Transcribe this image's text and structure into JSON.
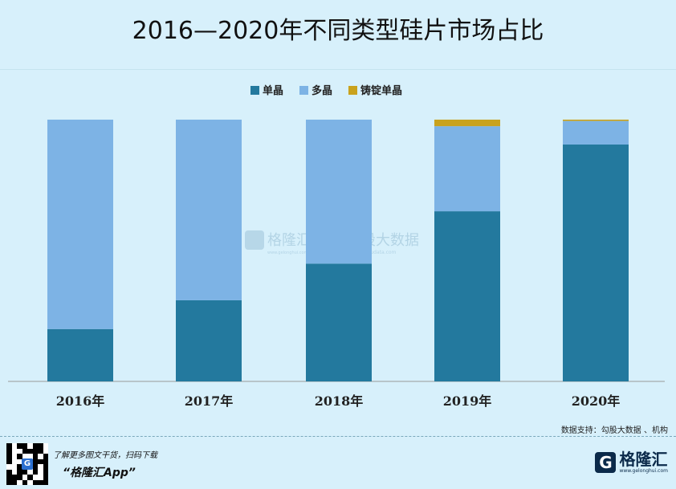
{
  "title": "2016—2020年不同类型硅片市场占比",
  "source": "数据支持：勾股大数据 、机构",
  "footer": {
    "promo_line1": "了解更多图文干货，扫码下载",
    "promo_line2": "“格隆汇App”",
    "brand_name": "格隆汇",
    "brand_url": "www.gelonghui.com"
  },
  "watermark": {
    "left_brand": "格隆汇",
    "left_url": "www.gelonghui.com",
    "right_brand": "勾股大数据",
    "right_url": "www.gogudata.com"
  },
  "colors": {
    "background": "#d7f0fb",
    "mono": "#23799e",
    "multi": "#7db3e5",
    "cast_mono": "#c9a21d"
  },
  "chart_data": {
    "type": "bar",
    "stacked": true,
    "categories": [
      "2016年",
      "2017年",
      "2018年",
      "2019年",
      "2020年"
    ],
    "series": [
      {
        "name": "单晶",
        "values": [
          20,
          31,
          45,
          65,
          90.5
        ]
      },
      {
        "name": "多晶",
        "values": [
          80,
          69,
          55,
          32.5,
          9
        ]
      },
      {
        "name": "铸锭单晶",
        "values": [
          0,
          0,
          0,
          2.5,
          0.5
        ]
      }
    ],
    "legend_position": "top",
    "ylim": [
      0,
      100
    ],
    "grid": false
  }
}
